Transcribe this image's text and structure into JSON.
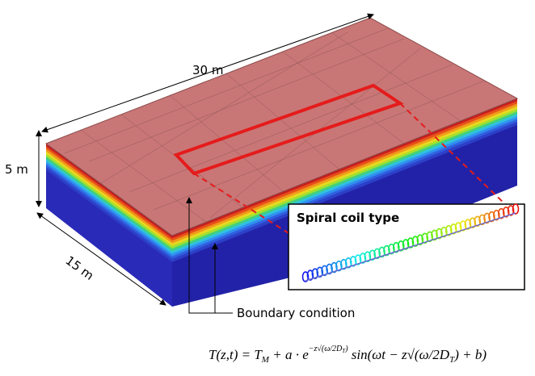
{
  "labels": {
    "length": "30 m",
    "depth": "5 m",
    "width": "15 m",
    "inset_title": "Spiral coil type",
    "boundary": "Boundary condition"
  },
  "equation": {
    "parts": [
      "T(z,t) = T",
      "M",
      " + a · e",
      "−z√(ω/2D",
      "T",
      ")",
      " sin(ωt − z√(ω/2D",
      "T",
      ") + b)"
    ]
  }
}
